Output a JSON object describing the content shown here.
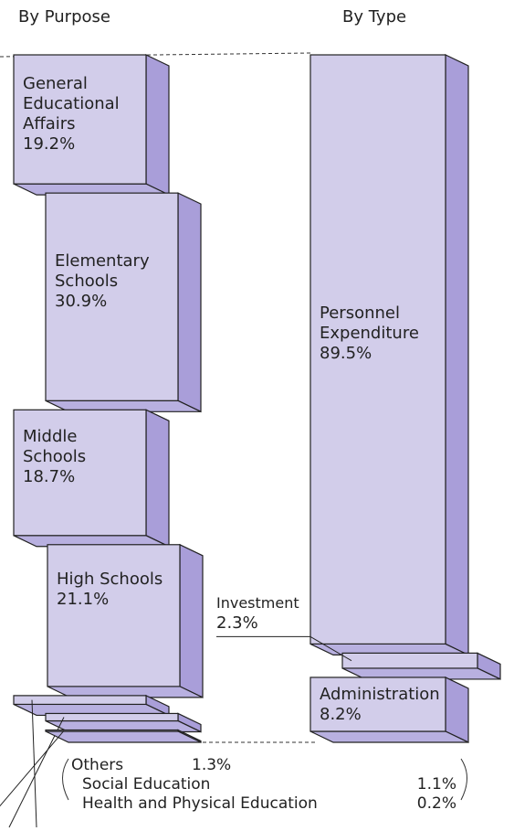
{
  "chart_data": [
    {
      "type": "stacked_3d_bar",
      "title": "By Purpose",
      "categories": [
        "General Educational Affairs",
        "Elementary Schools",
        "Middle Schools",
        "High Schools",
        "Others",
        "Social Education",
        "Health and Physical Education"
      ],
      "values": [
        19.2,
        30.9,
        18.7,
        21.1,
        1.3,
        1.1,
        0.2
      ],
      "value_labels": [
        "19.2%",
        "30.9%",
        "18.7%",
        "21.1%",
        "1.3%",
        "1.1%",
        "0.2%"
      ],
      "color": "#d2cdea"
    },
    {
      "type": "stacked_3d_bar",
      "title": "By Type",
      "categories": [
        "Personnel Expenditure",
        "Investment",
        "Administration"
      ],
      "values": [
        89.5,
        2.3,
        8.2
      ],
      "value_labels": [
        "89.5%",
        "2.3%",
        "8.2%"
      ],
      "color": "#d2cdea"
    }
  ]
}
